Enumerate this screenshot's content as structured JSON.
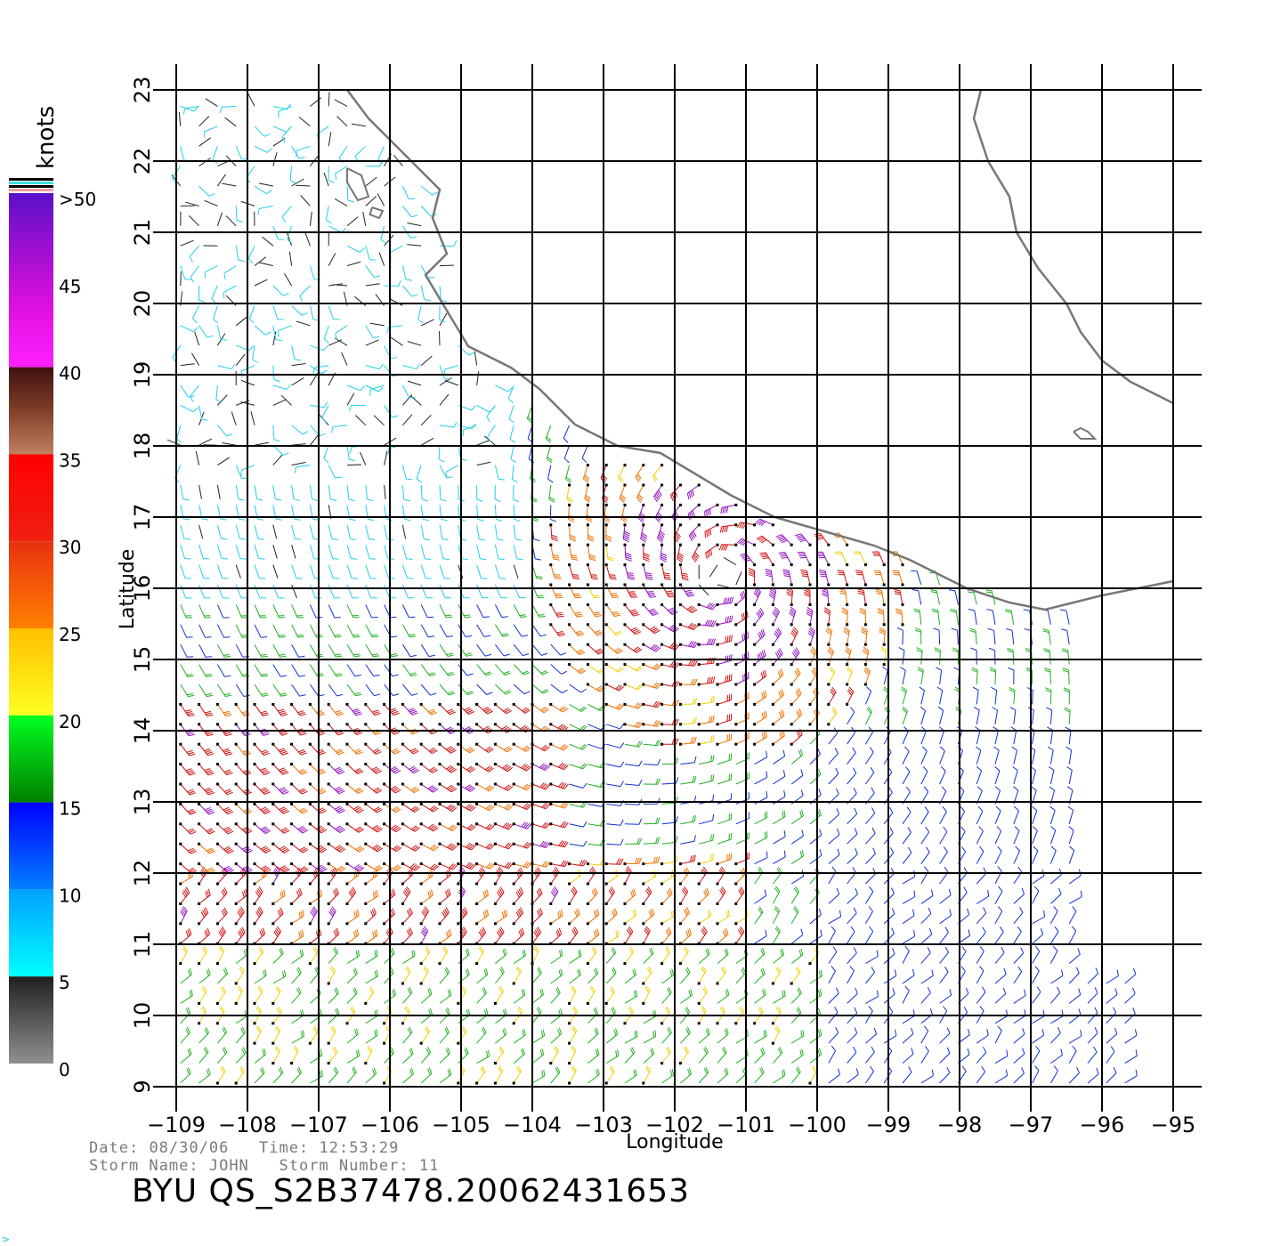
{
  "map": {
    "lon_range": [
      -109,
      -95
    ],
    "lat_range": [
      9,
      23
    ],
    "x_ticks": [
      "-109",
      "-108",
      "-107",
      "-106",
      "-105",
      "-104",
      "-103",
      "-102",
      "-101",
      "-100",
      "-99",
      "-98",
      "-97",
      "-96",
      "-95"
    ],
    "y_ticks": [
      "9",
      "10",
      "11",
      "12",
      "13",
      "14",
      "15",
      "16",
      "17",
      "18",
      "19",
      "20",
      "21",
      "22",
      "23"
    ],
    "xlabel": "Longitude",
    "ylabel": "Latitude",
    "grid": true,
    "coastline_color": "#777777",
    "grid_color": "#000000"
  },
  "colorbar": {
    "unit": "knots",
    "labels": [
      ">50",
      "45",
      "40",
      "35",
      "30",
      "25",
      "20",
      "15",
      "10",
      "5",
      "0"
    ],
    "bands": [
      {
        "from": 50,
        "to": 40,
        "colors": [
          "#5a10c8",
          "#a010d0",
          "#e010e0",
          "#ff20ff"
        ]
      },
      {
        "from": 40,
        "to": 35,
        "colors": [
          "#401010",
          "#804028",
          "#c08060"
        ]
      },
      {
        "from": 35,
        "to": 30,
        "colors": [
          "#ff0000",
          "#f02010"
        ]
      },
      {
        "from": 30,
        "to": 25,
        "colors": [
          "#e83010",
          "#ff8000"
        ]
      },
      {
        "from": 25,
        "to": 20,
        "colors": [
          "#ffc000",
          "#ffff20"
        ]
      },
      {
        "from": 20,
        "to": 15,
        "colors": [
          "#00ff20",
          "#008000"
        ]
      },
      {
        "from": 15,
        "to": 10,
        "colors": [
          "#0000ff",
          "#0080ff"
        ]
      },
      {
        "from": 10,
        "to": 5,
        "colors": [
          "#00a0ff",
          "#00ffff"
        ]
      },
      {
        "from": 5,
        "to": 0,
        "colors": [
          "#202020",
          "#909090"
        ]
      }
    ],
    "top_strips": [
      "#000000",
      "#40e0e0",
      "#000000",
      "#f0a0a0"
    ]
  },
  "wind_colors": {
    "calm": "#222222",
    "light": "#20d0e8",
    "moderate": "#1030d0",
    "fresh": "#20b020",
    "strong": "#f0d000",
    "gale": "#f07000",
    "storm": "#d01010",
    "violent": "#9010c0"
  },
  "footer": {
    "date_label": "Date:",
    "date": "08/30/06",
    "time_label": "Time:",
    "time": "12:53:29",
    "storm_name_label": "Storm Name:",
    "storm_name": "JOHN",
    "storm_number_label": "Storm Number:",
    "storm_number": "11",
    "title": "BYU QS_S2B37478.20062431653",
    "corner_mark": ">"
  }
}
